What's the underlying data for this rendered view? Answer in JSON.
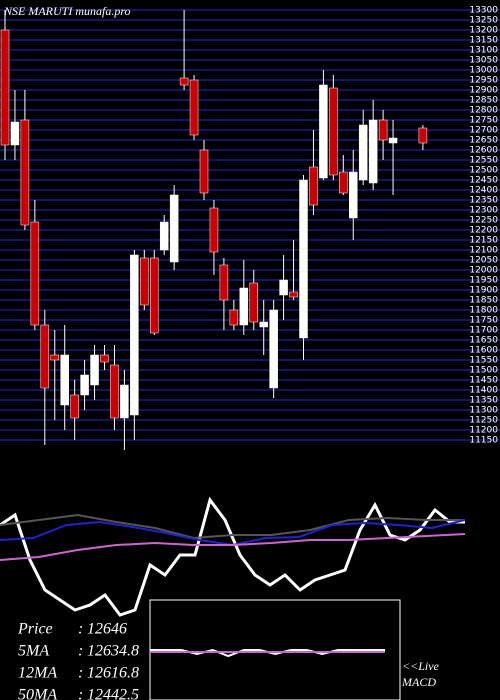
{
  "chart_data": [
    {
      "type": "candlestick",
      "title": "NSE MARUTI munafa.pro",
      "up_color": "#ffffff",
      "down_color": "#cc0000",
      "grid_color": "#2a2ad0",
      "ylim": [
        11100,
        13350
      ],
      "yticks": [
        11150,
        11200,
        11250,
        11300,
        11350,
        11400,
        11450,
        11500,
        11550,
        11600,
        11650,
        11700,
        11750,
        11800,
        11850,
        11900,
        11950,
        12000,
        12050,
        12100,
        12150,
        12200,
        12250,
        12300,
        12350,
        12400,
        12450,
        12500,
        12550,
        12600,
        12650,
        12700,
        12750,
        12800,
        12850,
        12900,
        12950,
        13000,
        13050,
        13100,
        13150,
        13200,
        13250,
        13300
      ],
      "candles": [
        {
          "o": 13200,
          "h": 13300,
          "l": 12550,
          "c": 12625
        },
        {
          "o": 12625,
          "h": 12900,
          "l": 12550,
          "c": 12740
        },
        {
          "o": 12750,
          "h": 12900,
          "l": 12200,
          "c": 12225
        },
        {
          "o": 12240,
          "h": 12350,
          "l": 11700,
          "c": 11725
        },
        {
          "o": 11725,
          "h": 11800,
          "l": 11125,
          "c": 11410
        },
        {
          "o": 11575,
          "h": 11700,
          "l": 11250,
          "c": 11550
        },
        {
          "o": 11325,
          "h": 11725,
          "l": 11200,
          "c": 11575
        },
        {
          "o": 11375,
          "h": 11450,
          "l": 11150,
          "c": 11260
        },
        {
          "o": 11375,
          "h": 11550,
          "l": 11300,
          "c": 11475
        },
        {
          "o": 11425,
          "h": 11625,
          "l": 11350,
          "c": 11575
        },
        {
          "o": 11575,
          "h": 11625,
          "l": 11500,
          "c": 11540
        },
        {
          "o": 11525,
          "h": 11625,
          "l": 11200,
          "c": 11260
        },
        {
          "o": 11260,
          "h": 11500,
          "l": 11100,
          "c": 11425
        },
        {
          "o": 11275,
          "h": 12100,
          "l": 11150,
          "c": 12075
        },
        {
          "o": 12060,
          "h": 12100,
          "l": 11800,
          "c": 11825
        },
        {
          "o": 12060,
          "h": 12100,
          "l": 11675,
          "c": 11685
        },
        {
          "o": 12100,
          "h": 12275,
          "l": 12075,
          "c": 12240
        },
        {
          "o": 12040,
          "h": 12425,
          "l": 12000,
          "c": 12375
        },
        {
          "o": 12960,
          "h": 13300,
          "l": 12900,
          "c": 12925
        },
        {
          "o": 12950,
          "h": 12975,
          "l": 12650,
          "c": 12675
        },
        {
          "o": 12600,
          "h": 12650,
          "l": 12350,
          "c": 12385
        },
        {
          "o": 12310,
          "h": 12350,
          "l": 11975,
          "c": 12090
        },
        {
          "o": 12025,
          "h": 12060,
          "l": 11700,
          "c": 11850
        },
        {
          "o": 11800,
          "h": 11850,
          "l": 11700,
          "c": 11725
        },
        {
          "o": 11725,
          "h": 12050,
          "l": 11675,
          "c": 11910
        },
        {
          "o": 11935,
          "h": 12000,
          "l": 11700,
          "c": 11740
        },
        {
          "o": 11715,
          "h": 11850,
          "l": 11575,
          "c": 11740
        },
        {
          "o": 11410,
          "h": 11850,
          "l": 11360,
          "c": 11800
        },
        {
          "o": 11875,
          "h": 12075,
          "l": 11750,
          "c": 11950
        },
        {
          "o": 11890,
          "h": 12150,
          "l": 11850,
          "c": 11865
        },
        {
          "o": 11660,
          "h": 12475,
          "l": 11550,
          "c": 12450
        },
        {
          "o": 12515,
          "h": 12700,
          "l": 12275,
          "c": 12325
        },
        {
          "o": 12460,
          "h": 13000,
          "l": 12450,
          "c": 12925
        },
        {
          "o": 12910,
          "h": 12975,
          "l": 12450,
          "c": 12475
        },
        {
          "o": 12490,
          "h": 12575,
          "l": 12375,
          "c": 12385
        },
        {
          "o": 12260,
          "h": 12600,
          "l": 12150,
          "c": 12490
        },
        {
          "o": 12450,
          "h": 12800,
          "l": 12425,
          "c": 12725
        },
        {
          "o": 12435,
          "h": 12850,
          "l": 12400,
          "c": 12750
        },
        {
          "o": 12750,
          "h": 12800,
          "l": 12550,
          "c": 12650
        },
        {
          "o": 12635,
          "h": 12750,
          "l": 12375,
          "c": 12660
        },
        null,
        null,
        {
          "o": 12710,
          "h": 12725,
          "l": 12600,
          "c": 12635
        }
      ]
    },
    {
      "type": "line",
      "ylim": [
        0,
        245
      ],
      "series": [
        {
          "color": "#ffffff",
          "values": [
            175,
            185,
            140,
            110,
            100,
            90,
            95,
            105,
            85,
            90,
            135,
            125,
            145,
            145,
            200,
            180,
            145,
            125,
            115,
            125,
            110,
            120,
            125,
            130,
            170,
            195,
            165,
            160,
            170,
            190,
            178,
            178
          ]
        },
        {
          "color": "#555555",
          "values": [
            175,
            180,
            185,
            178,
            172,
            162,
            165,
            165,
            170,
            180,
            182,
            180,
            180
          ]
        },
        {
          "color": "#2222cc",
          "values": [
            160,
            162,
            175,
            178,
            173,
            167,
            160,
            155,
            162,
            163,
            175,
            177,
            175,
            172,
            180
          ]
        },
        {
          "color": "#cc66cc",
          "values": [
            140,
            143,
            150,
            155,
            157,
            155,
            155,
            157,
            160,
            160,
            162,
            164,
            166
          ]
        }
      ],
      "stats": [
        {
          "label": "Price",
          "value": 12646
        },
        {
          "label": "5MA",
          "value": 12634.8
        },
        {
          "label": "12MA",
          "value": 12616.8
        },
        {
          "label": "50MA",
          "value": 12442.5
        }
      ]
    },
    {
      "type": "line",
      "title": "MACD",
      "note": "<<Live",
      "ylim": [
        0,
        100
      ],
      "series": [
        {
          "color": "#ffffff",
          "values": [
            50,
            50,
            50,
            46,
            50,
            44,
            50,
            50,
            46,
            50,
            50,
            46,
            50,
            50,
            50,
            50
          ]
        },
        {
          "color": "#cc66cc",
          "values": [
            48,
            48,
            48,
            48,
            48,
            48,
            48,
            48,
            48,
            48,
            48,
            48,
            48,
            48,
            48,
            48
          ]
        }
      ]
    }
  ]
}
